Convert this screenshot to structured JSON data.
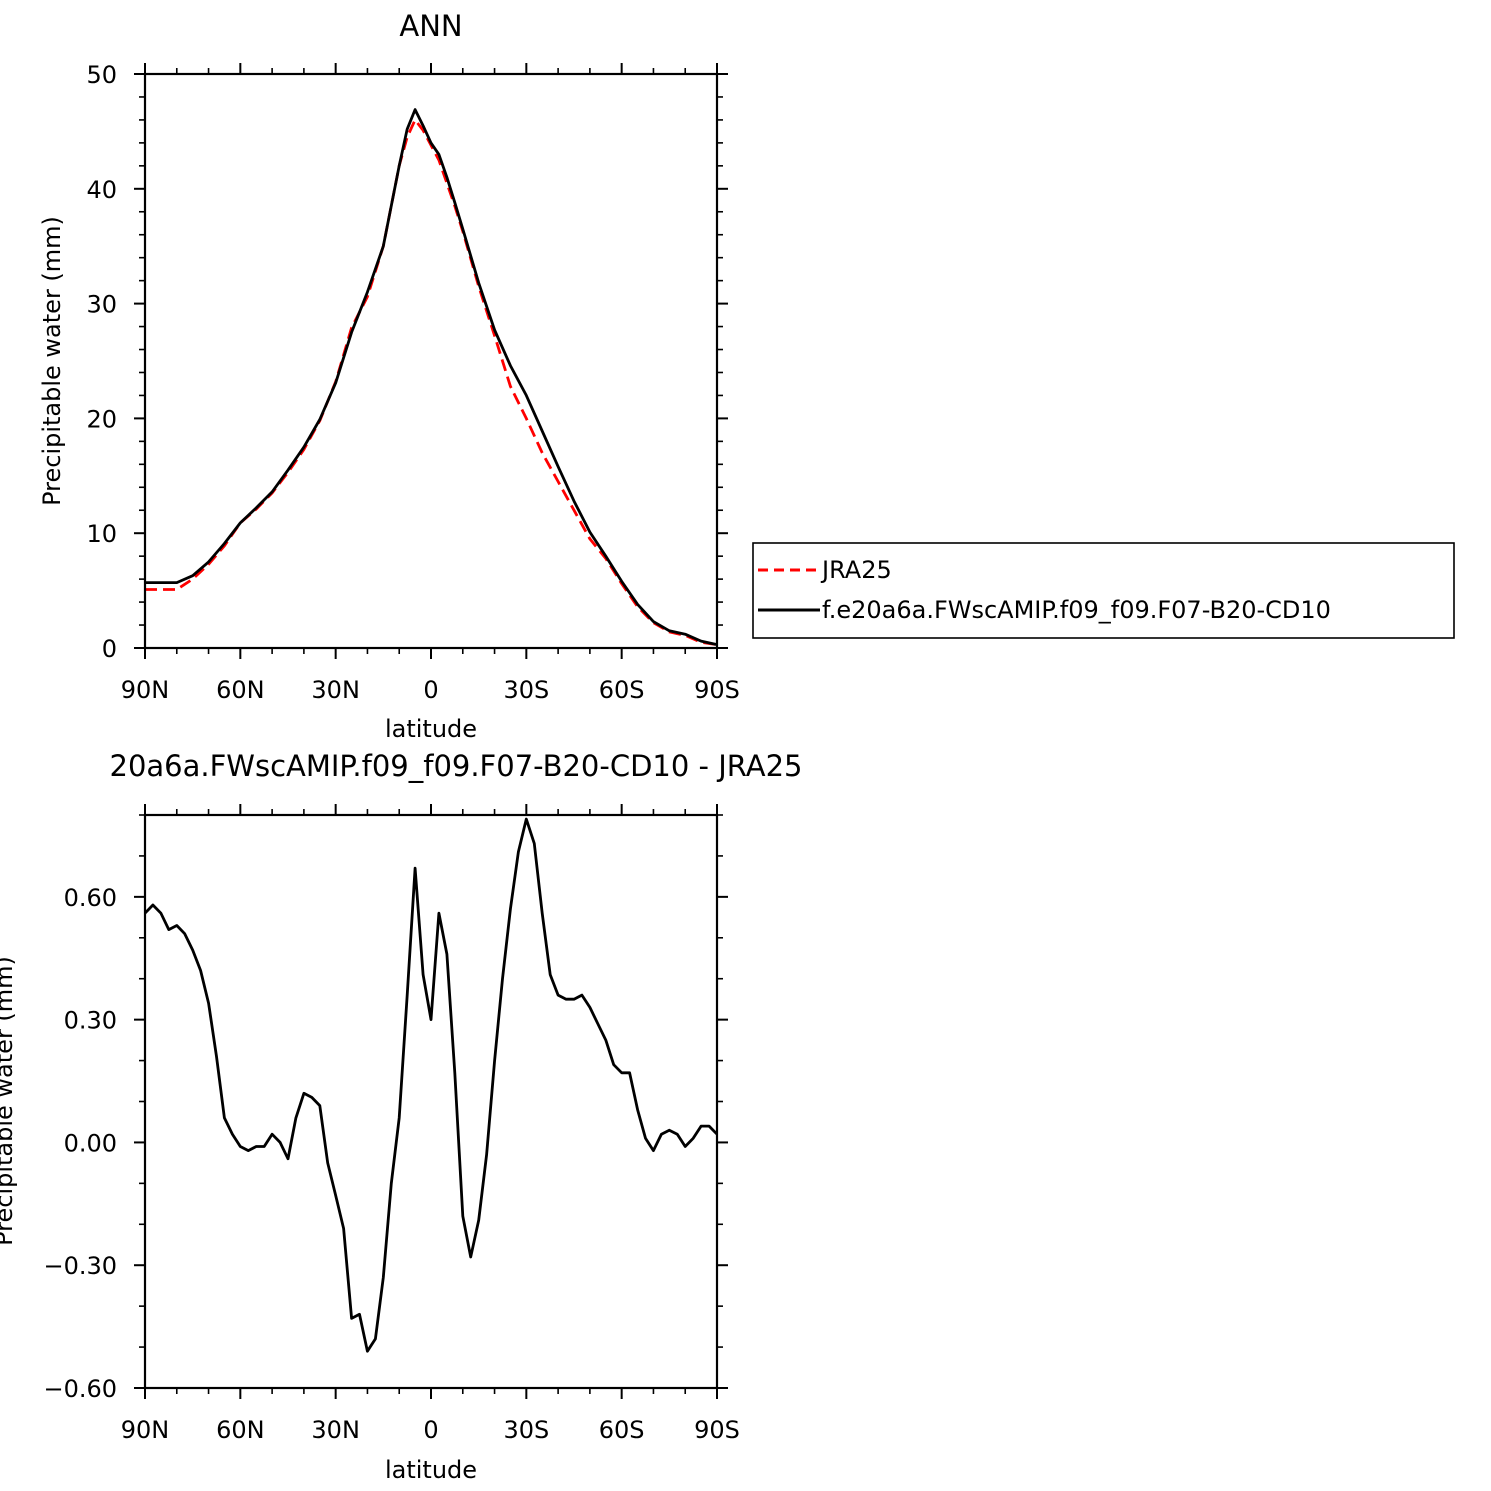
{
  "chart_data": [
    {
      "type": "line",
      "title": "ANN",
      "xlabel": "latitude",
      "ylabel": "Precipitable water (mm)",
      "xlim": [
        90,
        -90
      ],
      "ylim": [
        0,
        50
      ],
      "x_ticks": [
        {
          "value": 90,
          "label": "90N"
        },
        {
          "value": 60,
          "label": "60N"
        },
        {
          "value": 30,
          "label": "30N"
        },
        {
          "value": 0,
          "label": "0"
        },
        {
          "value": -30,
          "label": "30S"
        },
        {
          "value": -60,
          "label": "60S"
        },
        {
          "value": -90,
          "label": "90S"
        }
      ],
      "y_ticks": [
        {
          "value": 0,
          "label": "0"
        },
        {
          "value": 10,
          "label": "10"
        },
        {
          "value": 20,
          "label": "20"
        },
        {
          "value": 30,
          "label": "30"
        },
        {
          "value": 40,
          "label": "40"
        },
        {
          "value": 50,
          "label": "50"
        }
      ],
      "legend_position": "right",
      "series": [
        {
          "name": "JRA25",
          "color": "#ff0000",
          "dash": "dashed",
          "x": [
            90,
            85,
            80,
            75,
            70,
            65,
            60,
            55,
            50,
            45,
            40,
            35,
            30,
            25,
            20,
            15,
            10,
            7.5,
            5,
            2.5,
            0,
            -2.5,
            -5,
            -7.5,
            -10,
            -15,
            -20,
            -25,
            -30,
            -35,
            -40,
            -45,
            -50,
            -55,
            -60,
            -65,
            -70,
            -75,
            -80,
            -85,
            -90
          ],
          "values": [
            5.1,
            5.1,
            5.1,
            6.0,
            7.3,
            8.9,
            10.9,
            12.1,
            13.5,
            15.3,
            17.3,
            19.8,
            23.2,
            27.9,
            30.6,
            35.0,
            42.0,
            44.5,
            46.0,
            45.1,
            43.8,
            42.5,
            40.5,
            38.5,
            36.3,
            31.5,
            27.2,
            22.8,
            20.0,
            17.0,
            14.5,
            12.0,
            9.5,
            7.8,
            5.6,
            3.6,
            2.2,
            1.4,
            1.1,
            0.5,
            0.3
          ]
        },
        {
          "name": "f.e20a6a.FWscAMIP.f09_f09.F07-B20-CD10",
          "color": "#000000",
          "dash": "solid",
          "x": [
            90,
            85,
            80,
            75,
            70,
            65,
            60,
            55,
            50,
            45,
            40,
            35,
            30,
            25,
            20,
            15,
            10,
            7.5,
            5,
            2.5,
            0,
            -2.5,
            -5,
            -7.5,
            -10,
            -15,
            -20,
            -25,
            -30,
            -35,
            -40,
            -45,
            -50,
            -55,
            -60,
            -65,
            -70,
            -75,
            -80,
            -85,
            -90
          ],
          "values": [
            5.7,
            5.7,
            5.7,
            6.3,
            7.5,
            9.1,
            10.9,
            12.2,
            13.6,
            15.5,
            17.5,
            19.9,
            23.1,
            27.5,
            31.0,
            35.0,
            42.0,
            45.2,
            46.9,
            45.5,
            44.0,
            43.0,
            41.0,
            38.8,
            36.5,
            31.8,
            27.7,
            24.6,
            22.0,
            18.9,
            15.8,
            12.8,
            10.1,
            8.0,
            5.8,
            3.8,
            2.3,
            1.5,
            1.2,
            0.6,
            0.3
          ]
        }
      ]
    },
    {
      "type": "line",
      "title": "20a6a.FWscAMIP.f09_f09.F07-B20-CD10 - JRA25",
      "xlabel": "latitude",
      "ylabel": "Precipitable water (mm)",
      "xlim": [
        90,
        -90
      ],
      "ylim": [
        -0.6,
        0.8
      ],
      "x_ticks": [
        {
          "value": 90,
          "label": "90N"
        },
        {
          "value": 60,
          "label": "60N"
        },
        {
          "value": 30,
          "label": "30N"
        },
        {
          "value": 0,
          "label": "0"
        },
        {
          "value": -30,
          "label": "30S"
        },
        {
          "value": -60,
          "label": "60S"
        },
        {
          "value": -90,
          "label": "90S"
        }
      ],
      "y_ticks": [
        {
          "value": -0.6,
          "label": "−0.60"
        },
        {
          "value": -0.3,
          "label": "−0.30"
        },
        {
          "value": 0,
          "label": "0.00"
        },
        {
          "value": 0.3,
          "label": "0.30"
        },
        {
          "value": 0.6,
          "label": "0.60"
        }
      ],
      "series": [
        {
          "name": "",
          "color": "#000000",
          "dash": "solid",
          "x": [
            90,
            87.5,
            85,
            82.5,
            80,
            77.5,
            75,
            72.5,
            70,
            67.5,
            65,
            62.5,
            60,
            57.5,
            55,
            52.5,
            50,
            47.5,
            45,
            42.5,
            40,
            37.5,
            35,
            32.5,
            30,
            27.5,
            25,
            22.5,
            20,
            17.5,
            15,
            12.5,
            10,
            7.5,
            5,
            2.5,
            0,
            -2.5,
            -5,
            -7.5,
            -10,
            -12.5,
            -15,
            -17.5,
            -20,
            -22.5,
            -25,
            -27.5,
            -30,
            -32.5,
            -35,
            -37.5,
            -40,
            -42.5,
            -45,
            -47.5,
            -50,
            -52.5,
            -55,
            -57.5,
            -60,
            -62.5,
            -65,
            -67.5,
            -70,
            -72.5,
            -75,
            -77.5,
            -80,
            -82.5,
            -85,
            -87.5,
            -90
          ],
          "values": [
            0.56,
            0.58,
            0.56,
            0.52,
            0.53,
            0.51,
            0.47,
            0.42,
            0.34,
            0.21,
            0.06,
            0.02,
            -0.01,
            -0.02,
            -0.01,
            -0.01,
            0.02,
            0.0,
            -0.04,
            0.06,
            0.12,
            0.11,
            0.09,
            -0.05,
            -0.13,
            -0.21,
            -0.43,
            -0.42,
            -0.51,
            -0.48,
            -0.33,
            -0.1,
            0.06,
            0.36,
            0.67,
            0.41,
            0.3,
            0.56,
            0.46,
            0.17,
            -0.18,
            -0.28,
            -0.19,
            -0.03,
            0.2,
            0.4,
            0.57,
            0.71,
            0.79,
            0.73,
            0.56,
            0.41,
            0.36,
            0.35,
            0.35,
            0.36,
            0.33,
            0.29,
            0.25,
            0.19,
            0.17,
            0.17,
            0.08,
            0.01,
            -0.02,
            0.02,
            0.03,
            0.02,
            -0.01,
            0.01,
            0.04,
            0.04,
            0.02
          ]
        }
      ]
    }
  ]
}
